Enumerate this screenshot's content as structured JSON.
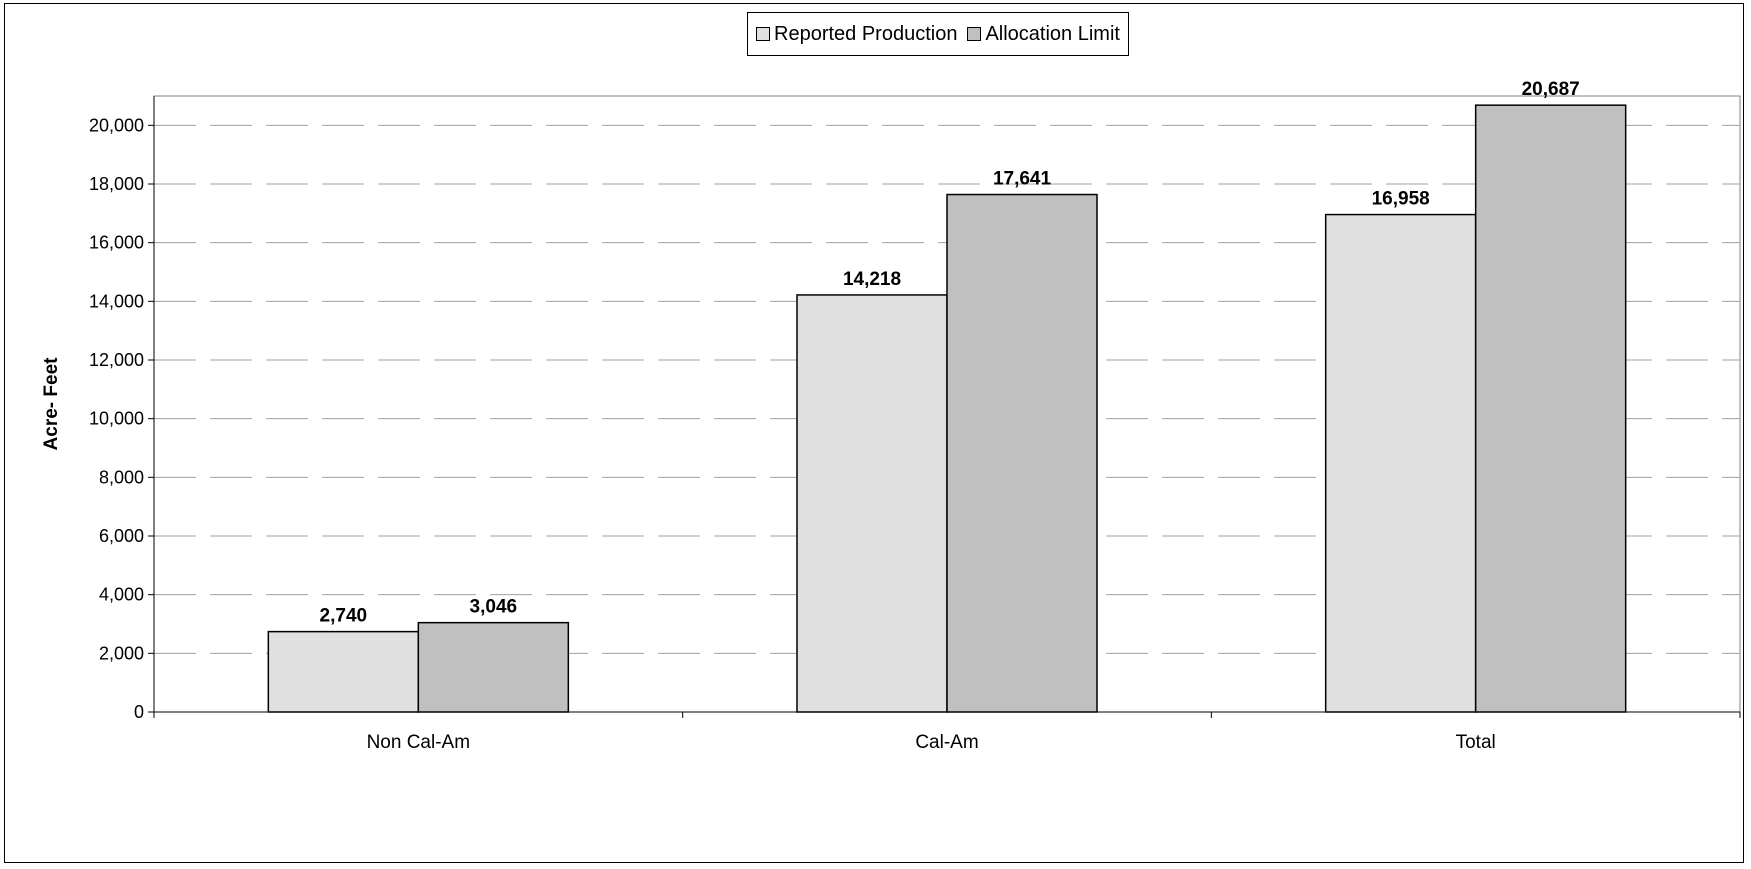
{
  "chart_data": {
    "type": "bar",
    "categories": [
      "Non Cal-Am",
      "Cal-Am",
      "Total"
    ],
    "series": [
      {
        "name": "Reported Production",
        "values": [
          2740,
          14218,
          16958
        ],
        "labels": [
          "2,740",
          "14,218",
          "16,958"
        ],
        "color": "#e0e0e0"
      },
      {
        "name": "Allocation Limit",
        "values": [
          3046,
          17641,
          20687
        ],
        "labels": [
          "3,046",
          "17,641",
          "20,687"
        ],
        "color": "#c0c0c0"
      }
    ],
    "ylabel": "Acre- Feet",
    "ylim": [
      0,
      21000
    ],
    "yticks": [
      0,
      2000,
      4000,
      6000,
      8000,
      10000,
      12000,
      14000,
      16000,
      18000,
      20000
    ],
    "ytick_labels": [
      "0",
      "2,000",
      "4,000",
      "6,000",
      "8,000",
      "10,000",
      "12,000",
      "14,000",
      "16,000",
      "18,000",
      "20,000"
    ],
    "grid": true,
    "legend": "top-center"
  }
}
